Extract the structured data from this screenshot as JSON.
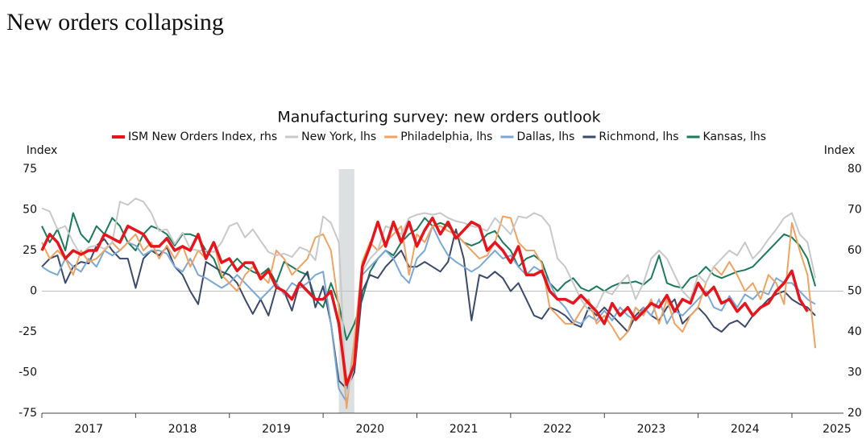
{
  "title": "New orders collapsing",
  "chart_data": {
    "type": "line",
    "title": "Manufacturing survey: new orders outlook",
    "ylabel": "Index",
    "y2label": "Index",
    "x": [
      2017,
      2017.083,
      2017.167,
      2017.25,
      2017.333,
      2017.417,
      2017.5,
      2017.583,
      2017.667,
      2017.75,
      2017.833,
      2017.917,
      2018,
      2018.083,
      2018.167,
      2018.25,
      2018.333,
      2018.417,
      2018.5,
      2018.583,
      2018.667,
      2018.75,
      2018.833,
      2018.917,
      2019,
      2019.083,
      2019.167,
      2019.25,
      2019.333,
      2019.417,
      2019.5,
      2019.583,
      2019.667,
      2019.75,
      2019.833,
      2019.917,
      2020,
      2020.083,
      2020.167,
      2020.25,
      2020.333,
      2020.417,
      2020.5,
      2020.583,
      2020.667,
      2020.75,
      2020.833,
      2020.917,
      2021,
      2021.083,
      2021.167,
      2021.25,
      2021.333,
      2021.417,
      2021.5,
      2021.583,
      2021.667,
      2021.75,
      2021.833,
      2021.917,
      2022,
      2022.083,
      2022.167,
      2022.25,
      2022.333,
      2022.417,
      2022.5,
      2022.583,
      2022.667,
      2022.75,
      2022.833,
      2022.917,
      2023,
      2023.083,
      2023.167,
      2023.25,
      2023.333,
      2023.417,
      2023.5,
      2023.583,
      2023.667,
      2023.75,
      2023.833,
      2023.917,
      2024,
      2024.083,
      2024.167,
      2024.25,
      2024.333,
      2024.417,
      2024.5,
      2024.583,
      2024.667,
      2024.75,
      2024.833,
      2024.917,
      2025,
      2025.083,
      2025.167,
      2025.25
    ],
    "xlim": [
      2017,
      2025.55
    ],
    "xticks": [
      {
        "value": 2017.5,
        "label": "2017"
      },
      {
        "value": 2018.5,
        "label": "2018"
      },
      {
        "value": 2019.5,
        "label": "2019"
      },
      {
        "value": 2020.5,
        "label": "2020"
      },
      {
        "value": 2021.5,
        "label": "2021"
      },
      {
        "value": 2022.5,
        "label": "2022"
      },
      {
        "value": 2023.5,
        "label": "2023"
      },
      {
        "value": 2024.5,
        "label": "2024"
      },
      {
        "value": 2025.5,
        "label": "2025"
      }
    ],
    "ylim": [
      -75,
      75
    ],
    "yticks": [
      -75,
      -50,
      -25,
      0,
      25,
      50,
      75
    ],
    "y2lim": [
      20,
      80
    ],
    "y2ticks": [
      20,
      30,
      40,
      50,
      60,
      70,
      80
    ],
    "shaded_region": [
      2020.167,
      2020.333
    ],
    "series": [
      {
        "name": "ISM New Orders Index, rhs",
        "color": "#e8141c",
        "axis": "y2",
        "values": [
          60,
          64,
          62,
          58,
          60,
          59,
          60,
          60,
          64,
          63,
          62,
          66,
          65,
          64,
          61,
          61,
          63,
          60,
          61,
          60,
          64,
          58,
          62,
          57,
          58,
          55,
          57,
          57,
          53,
          55,
          51,
          50,
          48,
          52,
          50,
          48,
          48,
          50,
          42,
          27,
          32,
          56,
          61,
          67,
          61,
          67,
          62,
          67,
          61,
          65,
          68,
          64,
          67,
          63,
          65,
          67,
          66,
          60,
          62,
          60,
          57,
          61,
          54,
          54,
          55,
          50,
          48,
          48,
          47,
          49,
          47,
          45,
          42,
          47,
          44,
          46,
          43,
          45,
          47,
          46,
          49,
          45,
          48,
          47,
          52,
          49,
          51,
          47,
          48,
          45,
          47,
          44,
          46,
          47,
          50,
          52,
          55,
          48,
          45,
          null
        ]
      },
      {
        "name": "New York, lhs",
        "color": "#c8c8c8",
        "values": [
          51,
          49,
          38,
          40,
          30,
          22,
          27,
          28,
          26,
          30,
          55,
          53,
          57,
          55,
          48,
          37,
          38,
          29,
          36,
          26,
          25,
          25,
          24,
          30,
          40,
          42,
          33,
          38,
          31,
          24,
          22,
          23,
          21,
          27,
          25,
          19,
          46,
          42,
          30,
          -65,
          -45,
          12,
          20,
          25,
          40,
          38,
          35,
          45,
          47,
          48,
          47,
          48,
          45,
          43,
          42,
          40,
          39,
          37,
          45,
          40,
          35,
          46,
          45,
          48,
          46,
          40,
          20,
          15,
          5,
          -5,
          -12,
          -10,
          0,
          -2,
          5,
          10,
          -5,
          5,
          20,
          25,
          20,
          10,
          0,
          -5,
          10,
          5,
          15,
          20,
          25,
          22,
          30,
          20,
          25,
          32,
          38,
          45,
          48,
          35,
          30,
          8
        ]
      },
      {
        "name": "Philadelphia, lhs",
        "color": "#f0a260",
        "values": [
          30,
          20,
          25,
          20,
          10,
          25,
          18,
          20,
          25,
          30,
          25,
          30,
          35,
          25,
          30,
          20,
          28,
          20,
          28,
          15,
          25,
          20,
          30,
          10,
          5,
          0,
          10,
          15,
          10,
          5,
          25,
          20,
          10,
          15,
          20,
          33,
          35,
          25,
          -10,
          -72,
          -30,
          18,
          30,
          25,
          30,
          35,
          40,
          10,
          35,
          30,
          40,
          40,
          37,
          35,
          30,
          25,
          20,
          22,
          30,
          46,
          45,
          30,
          25,
          25,
          17,
          -10,
          -15,
          -20,
          -20,
          -12,
          -5,
          -20,
          -15,
          -22,
          -30,
          -25,
          -10,
          -15,
          -5,
          -20,
          -5,
          -20,
          -25,
          -15,
          -10,
          5,
          15,
          10,
          18,
          10,
          0,
          5,
          -5,
          10,
          5,
          -8,
          42,
          25,
          10,
          -35
        ]
      },
      {
        "name": "Dallas, lhs",
        "color": "#7ba7d7",
        "values": [
          15,
          12,
          10,
          20,
          15,
          12,
          20,
          15,
          25,
          22,
          25,
          30,
          28,
          22,
          25,
          25,
          23,
          15,
          12,
          20,
          10,
          8,
          5,
          2,
          5,
          10,
          5,
          0,
          -5,
          0,
          5,
          -2,
          5,
          2,
          5,
          10,
          12,
          -20,
          -60,
          -68,
          -30,
          10,
          15,
          20,
          25,
          20,
          10,
          5,
          20,
          25,
          40,
          30,
          22,
          18,
          15,
          12,
          15,
          20,
          25,
          20,
          22,
          15,
          10,
          15,
          12,
          5,
          -5,
          -10,
          -18,
          -20,
          -15,
          -18,
          -12,
          -18,
          -10,
          -15,
          -18,
          -10,
          -15,
          -5,
          -20,
          -12,
          -15,
          -10,
          -5,
          0,
          -10,
          -12,
          -3,
          -10,
          -2,
          -5,
          0,
          -2,
          8,
          5,
          5,
          0,
          -5,
          -8
        ]
      },
      {
        "name": "Richmond, lhs",
        "color": "#3b4a6b",
        "values": [
          15,
          20,
          22,
          5,
          15,
          18,
          17,
          28,
          32,
          25,
          20,
          20,
          2,
          20,
          25,
          22,
          27,
          15,
          10,
          0,
          -8,
          18,
          15,
          12,
          10,
          5,
          -5,
          -14,
          -5,
          -15,
          2,
          0,
          -12,
          5,
          12,
          -10,
          3,
          -20,
          -55,
          -60,
          -50,
          0,
          10,
          8,
          15,
          20,
          25,
          15,
          15,
          18,
          15,
          12,
          18,
          38,
          20,
          -18,
          10,
          8,
          12,
          8,
          0,
          5,
          -5,
          -15,
          -17,
          -10,
          -12,
          -15,
          -20,
          -22,
          -10,
          -15,
          -10,
          -15,
          -20,
          -25,
          -15,
          -10,
          -15,
          -18,
          -10,
          -5,
          -20,
          -15,
          -10,
          -15,
          -22,
          -25,
          -20,
          -18,
          -22,
          -15,
          -10,
          -5,
          -2,
          0,
          -5,
          -8,
          -10,
          -15
        ]
      },
      {
        "name": "Kansas, lhs",
        "color": "#1a7a5a",
        "values": [
          40,
          30,
          38,
          25,
          48,
          35,
          30,
          40,
          35,
          45,
          40,
          30,
          25,
          35,
          40,
          38,
          35,
          28,
          35,
          35,
          33,
          25,
          20,
          8,
          15,
          20,
          15,
          12,
          10,
          14,
          5,
          18,
          15,
          12,
          10,
          -5,
          -10,
          5,
          -8,
          -30,
          -20,
          -5,
          12,
          20,
          25,
          22,
          30,
          35,
          38,
          45,
          40,
          42,
          40,
          35,
          30,
          28,
          30,
          35,
          37,
          30,
          25,
          15,
          20,
          22,
          18,
          5,
          0,
          5,
          8,
          2,
          0,
          3,
          0,
          3,
          5,
          5,
          6,
          4,
          8,
          22,
          5,
          3,
          2,
          8,
          10,
          15,
          10,
          8,
          10,
          12,
          13,
          15,
          20,
          25,
          30,
          35,
          33,
          28,
          20,
          3
        ]
      }
    ]
  }
}
